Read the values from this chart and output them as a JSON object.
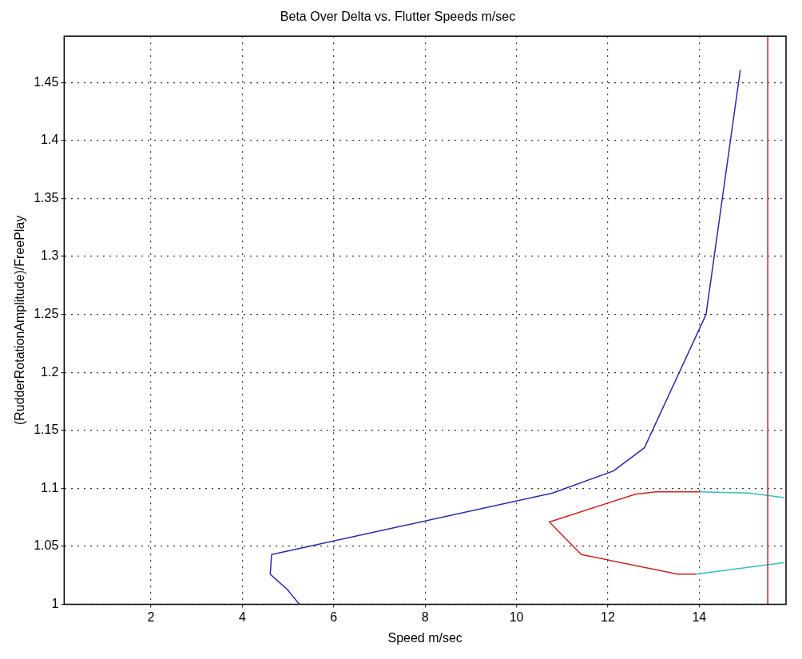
{
  "chart_data": {
    "type": "line",
    "title": "Beta Over Delta vs. Flutter Speeds m/sec",
    "xlabel": "Speed m/sec",
    "ylabel": "(RudderRotationAmplitude)/FreePlay",
    "series": [
      {
        "color": "#2a2aa8",
        "x": [
          5.25,
          4.98,
          4.61,
          4.64,
          10.79,
          12.12,
          12.8,
          14.15,
          14.9
        ],
        "values": [
          1.0,
          1.013,
          1.026,
          1.043,
          1.096,
          1.115,
          1.135,
          1.25,
          1.461
        ]
      },
      {
        "color": "#cc2222",
        "x": [
          14.01,
          13.05,
          12.6,
          10.72,
          11.42,
          13.53,
          13.93
        ],
        "values": [
          1.097,
          1.097,
          1.095,
          1.071,
          1.043,
          1.026,
          1.026
        ]
      },
      {
        "color": "#30c0c0",
        "x": [
          15.87,
          15.09,
          14.01
        ],
        "values": [
          1.092,
          1.096,
          1.097
        ]
      },
      {
        "color": "#30c0c0",
        "x": [
          13.93,
          15.87
        ],
        "values": [
          1.026,
          1.036
        ]
      }
    ],
    "xlim": [
      0.1,
      15.9
    ],
    "xticks": [
      2,
      4,
      6,
      8,
      10,
      12,
      14
    ],
    "ylim": [
      1,
      1.49
    ],
    "yticks": [
      1,
      1.05,
      1.1,
      1.15,
      1.2,
      1.25,
      1.3,
      1.35,
      1.4,
      1.45
    ],
    "ref_lines": [
      {
        "axis": "x",
        "value": 15.5,
        "color": "#cc2222"
      }
    ],
    "grid": true,
    "legend": false,
    "marker": "none",
    "line_style": "solid"
  }
}
